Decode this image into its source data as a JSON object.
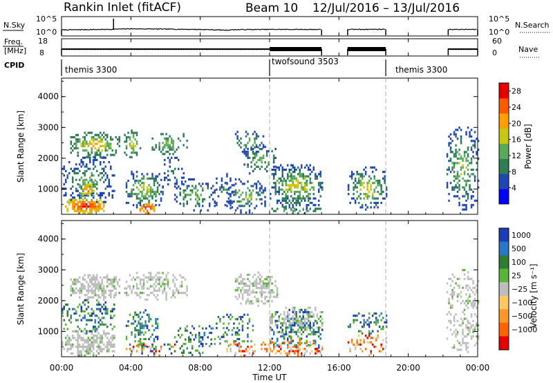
{
  "header": {
    "title": "Rankin Inlet (fitACF)",
    "beam": "Beam 10",
    "date_range": "12/Jul/2016 – 13/Jul/2016"
  },
  "panels": {
    "nsky_label": "N.Sky",
    "nsky_left_ticks": [
      "10^5",
      "10^0"
    ],
    "nsky_right_ticks": [
      "10^5",
      "10^0"
    ],
    "nsearch_label": "N.Search",
    "freq_label": "Freq.",
    "freq_unit": "[MHz]",
    "freq_ticks": [
      "18",
      "8"
    ],
    "nave_ticks": [
      "60",
      "0"
    ],
    "nave_label": "Nave",
    "cpid_label": "CPID"
  },
  "modes": [
    {
      "label": "themis 3300",
      "start": 0.0,
      "end": 12.0
    },
    {
      "label": "twofsound 3503",
      "start": 12.0,
      "end": 18.7
    },
    {
      "label": "themis 3300",
      "start": 18.7,
      "end": 24.0
    }
  ],
  "x_axis": {
    "label": "Time UT",
    "ticks": [
      "00:00",
      "04:00",
      "08:00",
      "12:00",
      "16:00",
      "20:00",
      "00:00"
    ]
  },
  "colors": {
    "power": [
      "#0000ff",
      "#1e46b4",
      "#2e7d55",
      "#5aaa5a",
      "#c8c814",
      "#ffa000",
      "#ff5a00",
      "#e60000"
    ],
    "velocity": [
      "#1e3cb4",
      "#2878c8",
      "#2e7d32",
      "#5ab43c",
      "#bdbdbd",
      "#ffc864",
      "#ff9628",
      "#ff6400",
      "#e60000"
    ],
    "ground_scatter": "#bdbdbd"
  },
  "chart_data": [
    {
      "type": "line",
      "name": "N.Sky / N.Search",
      "x_unit": "hours UT",
      "y_scale": "log",
      "ylim": [
        1,
        100000
      ],
      "segments": [
        {
          "x": [
            0,
            2.5,
            3,
            4,
            6,
            8,
            9.5,
            10,
            12,
            15
          ],
          "y": [
            30,
            40,
            45,
            60,
            50,
            40,
            25,
            35,
            40,
            40
          ]
        },
        {
          "x": [
            16.5,
            18.7
          ],
          "y": [
            40,
            45
          ]
        },
        {
          "x": [
            22.3,
            24
          ],
          "y": [
            40,
            40
          ]
        }
      ],
      "spike_x": 3.0
    },
    {
      "type": "line",
      "name": "Freq / Nave",
      "x_unit": "hours UT",
      "ylim": [
        8,
        18
      ],
      "segments": [
        {
          "x": [
            0,
            15
          ],
          "y": [
            12,
            12
          ]
        },
        {
          "x": [
            16.5,
            18.7
          ],
          "y": [
            12,
            12
          ]
        },
        {
          "x": [
            22.3,
            24
          ],
          "y": [
            12,
            12
          ]
        }
      ]
    },
    {
      "type": "heatmap",
      "title": "Power",
      "x_unit": "hours UT",
      "xlim": [
        0,
        24
      ],
      "ylabel": "Slant Range [km]",
      "ylim": [
        180,
        4600
      ],
      "yticks": [
        "1000",
        "2000",
        "3000",
        "4000"
      ],
      "colorbar": {
        "label": "Power [dB]",
        "ticks": [
          "4",
          "8",
          "12",
          "16",
          "20",
          "24",
          "28"
        ],
        "range": [
          0,
          30
        ]
      },
      "blobs": [
        {
          "t0": 0.5,
          "t1": 3.3,
          "r0": 2000,
          "r1": 2800,
          "p0": 8,
          "p1": 24,
          "d": 0.6
        },
        {
          "t0": 3.6,
          "t1": 4.5,
          "r0": 2000,
          "r1": 2900,
          "p0": 8,
          "p1": 20,
          "d": 0.45
        },
        {
          "t0": 5.2,
          "t1": 7.2,
          "r0": 2100,
          "r1": 2800,
          "p0": 8,
          "p1": 18,
          "d": 0.4
        },
        {
          "t0": 0.0,
          "t1": 3.0,
          "r0": 400,
          "r1": 2100,
          "p0": 4,
          "p1": 16,
          "d": 0.35
        },
        {
          "t0": 0.2,
          "t1": 2.4,
          "r0": 180,
          "r1": 650,
          "p0": 18,
          "p1": 30,
          "d": 0.95
        },
        {
          "t0": 1.0,
          "t1": 2.0,
          "r0": 600,
          "r1": 1300,
          "p0": 12,
          "p1": 26,
          "d": 0.7
        },
        {
          "t0": 3.7,
          "t1": 5.8,
          "r0": 300,
          "r1": 1600,
          "p0": 6,
          "p1": 20,
          "d": 0.45
        },
        {
          "t0": 4.5,
          "t1": 5.3,
          "r0": 180,
          "r1": 500,
          "p0": 20,
          "p1": 30,
          "d": 0.9
        },
        {
          "t0": 5.7,
          "t1": 7.0,
          "r0": 900,
          "r1": 2000,
          "p0": 4,
          "p1": 12,
          "d": 0.3
        },
        {
          "t0": 6.5,
          "t1": 8.8,
          "r0": 200,
          "r1": 1300,
          "p0": 6,
          "p1": 18,
          "d": 0.35
        },
        {
          "t0": 8.8,
          "t1": 10.0,
          "r0": 300,
          "r1": 1600,
          "p0": 4,
          "p1": 12,
          "d": 0.25
        },
        {
          "t0": 9.5,
          "t1": 11.7,
          "r0": 200,
          "r1": 1300,
          "p0": 4,
          "p1": 20,
          "d": 0.45
        },
        {
          "t0": 10.0,
          "t1": 11.6,
          "r0": 2100,
          "r1": 2900,
          "p0": 6,
          "p1": 18,
          "d": 0.45
        },
        {
          "t0": 10.5,
          "t1": 12.4,
          "r0": 1400,
          "r1": 2400,
          "p0": 6,
          "p1": 16,
          "d": 0.4
        },
        {
          "t0": 12.0,
          "t1": 15.0,
          "r0": 300,
          "r1": 1800,
          "p0": 6,
          "p1": 22,
          "d": 0.6
        },
        {
          "t0": 12.0,
          "t1": 15.0,
          "r0": 180,
          "r1": 400,
          "p0": 8,
          "p1": 18,
          "d": 0.45
        },
        {
          "t0": 16.5,
          "t1": 18.7,
          "r0": 300,
          "r1": 1700,
          "p0": 6,
          "p1": 22,
          "d": 0.5
        },
        {
          "t0": 22.2,
          "t1": 24.0,
          "r0": 300,
          "r1": 3000,
          "p0": 6,
          "p1": 18,
          "d": 0.4
        }
      ]
    },
    {
      "type": "heatmap",
      "title": "Velocity",
      "x_unit": "hours UT",
      "xlim": [
        0,
        24
      ],
      "ylabel": "Slant Range [km]",
      "ylim": [
        180,
        4600
      ],
      "yticks": [
        "1000",
        "2000",
        "3000",
        "4000"
      ],
      "colorbar": {
        "label": "Velocity [m s⁻¹]",
        "ticks": [
          "1000",
          "500",
          "100",
          "25",
          "−25",
          "−100",
          "−500",
          "−1000"
        ]
      },
      "blobs": [
        {
          "t0": 0.5,
          "t1": 3.3,
          "r0": 2000,
          "r1": 2800,
          "k": "g",
          "d": 0.75
        },
        {
          "t0": 3.6,
          "t1": 7.2,
          "r0": 2000,
          "r1": 2900,
          "k": "g",
          "d": 0.5
        },
        {
          "t0": 0.0,
          "t1": 3.0,
          "r0": 180,
          "r1": 1000,
          "k": "g",
          "d": 0.7
        },
        {
          "t0": 0.0,
          "t1": 3.0,
          "r0": 900,
          "r1": 2000,
          "k": "pos",
          "d": 0.35
        },
        {
          "t0": 3.7,
          "t1": 5.5,
          "r0": 500,
          "r1": 1700,
          "k": "pos",
          "d": 0.5
        },
        {
          "t0": 3.7,
          "t1": 6.5,
          "r0": 180,
          "r1": 600,
          "k": "mix",
          "d": 0.4
        },
        {
          "t0": 6.5,
          "t1": 8.8,
          "r0": 200,
          "r1": 1200,
          "k": "pos",
          "d": 0.35
        },
        {
          "t0": 8.8,
          "t1": 11.0,
          "r0": 500,
          "r1": 1600,
          "k": "pos",
          "d": 0.35
        },
        {
          "t0": 9.5,
          "t1": 12.0,
          "r0": 180,
          "r1": 700,
          "k": "neg",
          "d": 0.4
        },
        {
          "t0": 10.0,
          "t1": 12.4,
          "r0": 1800,
          "r1": 2900,
          "k": "g",
          "d": 0.55
        },
        {
          "t0": 12.0,
          "t1": 15.0,
          "r0": 800,
          "r1": 1800,
          "k": "g",
          "d": 0.5
        },
        {
          "t0": 12.0,
          "t1": 15.0,
          "r0": 300,
          "r1": 1700,
          "k": "pos",
          "d": 0.35
        },
        {
          "t0": 12.0,
          "t1": 15.0,
          "r0": 180,
          "r1": 700,
          "k": "neg",
          "d": 0.45
        },
        {
          "t0": 16.5,
          "t1": 18.7,
          "r0": 900,
          "r1": 1600,
          "k": "pos",
          "d": 0.45
        },
        {
          "t0": 16.5,
          "t1": 18.7,
          "r0": 180,
          "r1": 900,
          "k": "neg",
          "d": 0.4
        },
        {
          "t0": 22.2,
          "t1": 24.0,
          "r0": 300,
          "r1": 3000,
          "k": "g",
          "d": 0.4
        }
      ]
    }
  ]
}
